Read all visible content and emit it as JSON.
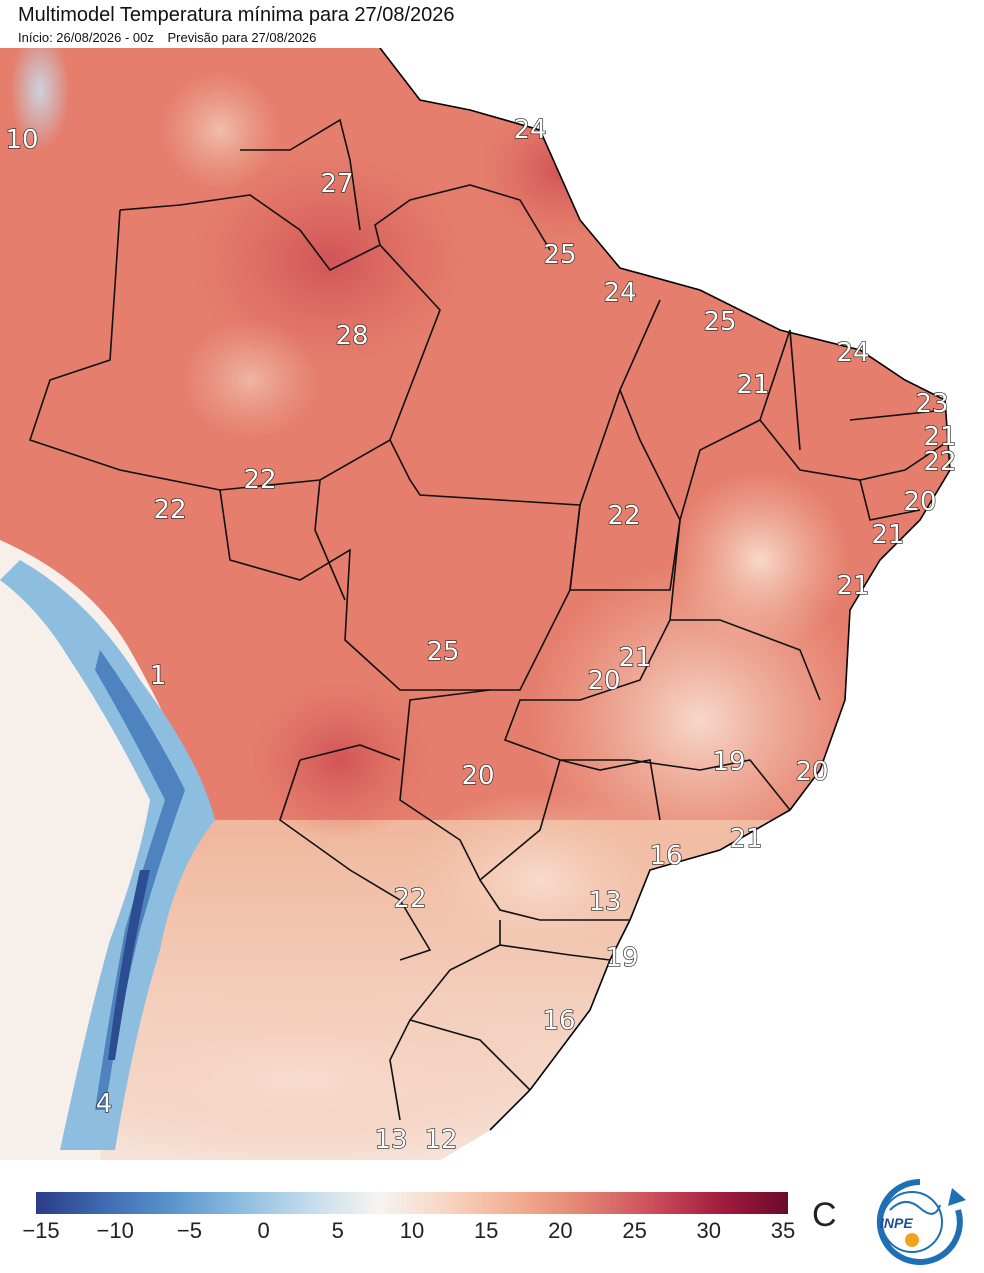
{
  "title": "Multimodel Temperatura mínima para 27/08/2026",
  "subtitle": {
    "start": "Início: 26/08/2026 - 00z",
    "forecast": "Previsão para 27/08/2026"
  },
  "map_labels": [
    {
      "value": "10",
      "region": "norte-colombia"
    },
    {
      "value": "27",
      "region": "roraima"
    },
    {
      "value": "24",
      "region": "amapa"
    },
    {
      "value": "25",
      "region": "foz-amazonas"
    },
    {
      "value": "24",
      "region": "marajo"
    },
    {
      "value": "25",
      "region": "maranhao-litoral"
    },
    {
      "value": "28",
      "region": "amazonas"
    },
    {
      "value": "24",
      "region": "ceara"
    },
    {
      "value": "21",
      "region": "piaui"
    },
    {
      "value": "23",
      "region": "rio-grande-do-norte"
    },
    {
      "value": "21",
      "region": "paraiba"
    },
    {
      "value": "22",
      "region": "pernambuco"
    },
    {
      "value": "20",
      "region": "alagoas"
    },
    {
      "value": "21",
      "region": "sergipe"
    },
    {
      "value": "22",
      "region": "rondonia-norte"
    },
    {
      "value": "22",
      "region": "acre"
    },
    {
      "value": "22",
      "region": "tocantins"
    },
    {
      "value": "21",
      "region": "bahia"
    },
    {
      "value": "25",
      "region": "mato-grosso"
    },
    {
      "value": "21",
      "region": "goias-norte"
    },
    {
      "value": "20",
      "region": "goias"
    },
    {
      "value": "1",
      "region": "altiplano"
    },
    {
      "value": "20",
      "region": "mato-grosso-do-sul"
    },
    {
      "value": "19",
      "region": "minas-gerais"
    },
    {
      "value": "20",
      "region": "espirito-santo"
    },
    {
      "value": "21",
      "region": "rio-de-janeiro"
    },
    {
      "value": "16",
      "region": "sao-paulo"
    },
    {
      "value": "22",
      "region": "paraguai"
    },
    {
      "value": "13",
      "region": "parana"
    },
    {
      "value": "19",
      "region": "santa-catarina"
    },
    {
      "value": "16",
      "region": "rio-grande-do-sul"
    },
    {
      "value": "4",
      "region": "andes-sul"
    },
    {
      "value": "13",
      "region": "uruguai-oeste"
    },
    {
      "value": "12",
      "region": "uruguai-leste"
    }
  ],
  "colorbar": {
    "ticks": [
      "−15",
      "−10",
      "−5",
      "0",
      "5",
      "10",
      "15",
      "20",
      "25",
      "30",
      "35"
    ],
    "unit": "C",
    "colors": [
      "#2a3d86",
      "#3f6bb2",
      "#5a95cc",
      "#8dbde0",
      "#c4dcec",
      "#f7f4f1",
      "#f8d5c2",
      "#f2ae92",
      "#e28472",
      "#cc4f5b",
      "#a21d3f",
      "#6a0a2a"
    ]
  },
  "logo": {
    "text": "INPE"
  }
}
